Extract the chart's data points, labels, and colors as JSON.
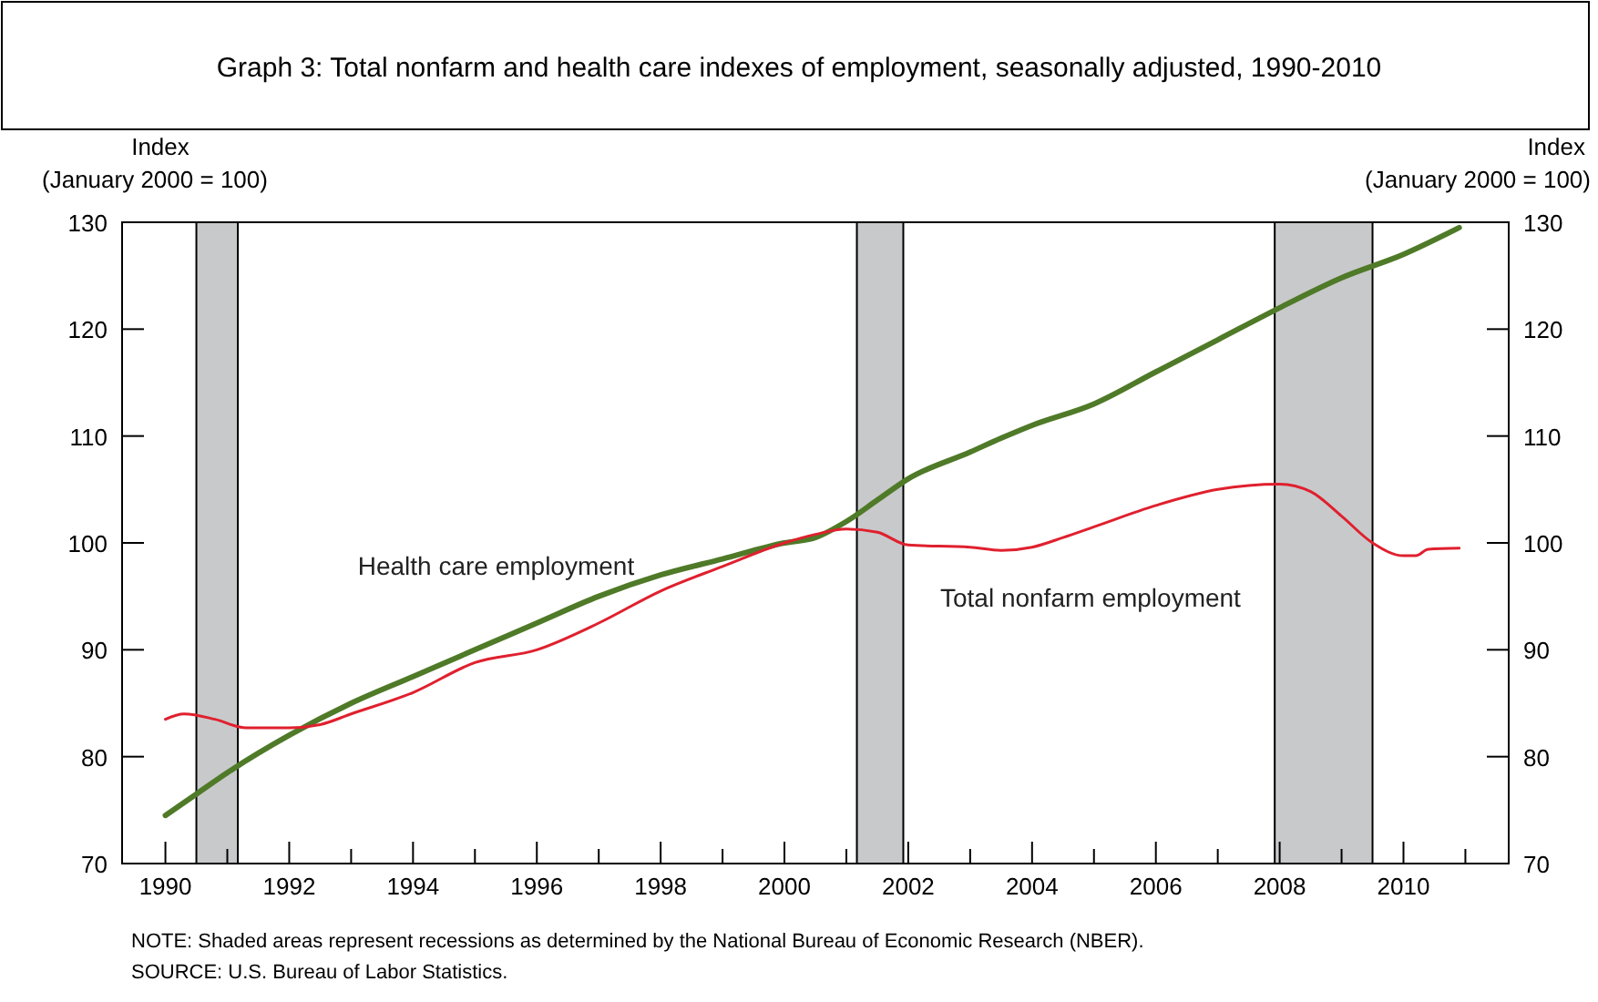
{
  "chart_data": {
    "type": "line",
    "title": "Graph 3: Total nonfarm and health care indexes of employment, seasonally adjusted, 1990-2010",
    "ylabel": "Index\n(January 2000 = 100)",
    "y2label": "Index\n(January 2000 = 100)",
    "xlim": [
      1989.3,
      2011.7
    ],
    "xticks": [
      1990,
      {
        "value": 1991,
        "label": null
      },
      1992,
      {
        "value": 1993,
        "label": null
      },
      1994,
      {
        "value": 1995,
        "label": null
      },
      1996,
      {
        "value": 1997,
        "label": null
      },
      1998,
      {
        "value": 1999,
        "label": null
      },
      2000,
      {
        "value": 2001,
        "label": null
      },
      2002,
      {
        "value": 2003,
        "label": null
      },
      2004,
      {
        "value": 2005,
        "label": null
      },
      2006,
      {
        "value": 2007,
        "label": null
      },
      2008,
      {
        "value": 2009,
        "label": null
      },
      2010,
      {
        "value": 2011,
        "label": null
      }
    ],
    "ylim": [
      70,
      130
    ],
    "yticks": [
      70,
      80,
      90,
      100,
      110,
      120,
      130
    ],
    "y2lim": [
      70,
      130
    ],
    "y2ticks": [
      70,
      80,
      90,
      100,
      110,
      120,
      130
    ],
    "grid": false,
    "legend": false,
    "marker": "none",
    "line_style": "solid",
    "series": [
      {
        "name": "Health care employment",
        "color": "#4f7a28",
        "x": [
          1990,
          1990.5,
          1991,
          1992,
          1993,
          1994,
          1995,
          1996,
          1997,
          1998,
          1999,
          2000,
          2000.5,
          2001,
          2001.5,
          2002,
          2003,
          2003.5,
          2004,
          2005,
          2006,
          2007,
          2008,
          2009,
          2010,
          2010.9
        ],
        "values": [
          74.5,
          76.5,
          78.5,
          82,
          85,
          87.5,
          90,
          92.5,
          95,
          97,
          98.5,
          100,
          100.5,
          102,
          104,
          106,
          108.5,
          109.8,
          111,
          113,
          116,
          119,
          122,
          124.8,
          127,
          129.5
        ]
      },
      {
        "name": "Total nonfarm employment",
        "color": "#e0202e",
        "x": [
          1990,
          1990.3,
          1990.8,
          1991.3,
          1992,
          1992.5,
          1993,
          1994,
          1995,
          1996,
          1997,
          1998,
          1999,
          2000,
          2000.5,
          2001,
          2001.5,
          2002,
          2003,
          2003.5,
          2004,
          2004.5,
          2005,
          2006,
          2007,
          2008,
          2008.5,
          2009,
          2009.5,
          2010,
          2010.2,
          2010.4,
          2010.9
        ],
        "values": [
          83.5,
          84,
          83.5,
          82.7,
          82.7,
          83,
          84,
          86,
          88.8,
          90,
          92.5,
          95.5,
          97.8,
          100,
          100.8,
          101.3,
          101,
          99.8,
          99.6,
          99.3,
          99.6,
          100.5,
          101.5,
          103.5,
          105,
          105.5,
          104.8,
          102.5,
          100,
          98.8,
          98.8,
          99.4,
          99.5
        ]
      }
    ],
    "bands": [
      {
        "axis": "x",
        "from": 1990.5,
        "to": 1991.17,
        "color": "#c8c9cb"
      },
      {
        "axis": "x",
        "from": 2001.17,
        "to": 2001.92,
        "color": "#c8c9cb"
      },
      {
        "axis": "x",
        "from": 2007.92,
        "to": 2009.5,
        "color": "#c8c9cb"
      }
    ],
    "annotations": [
      "NOTE:  Shaded areas represent recessions as determined by the National Bureau of Economic Research (NBER).",
      "SOURCE:  U.S. Bureau of Labor Statistics."
    ]
  }
}
